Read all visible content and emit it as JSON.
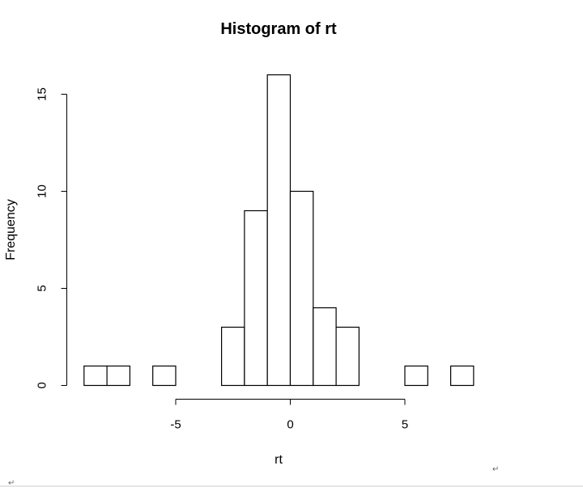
{
  "chart_data": {
    "type": "bar",
    "title": "Histogram of rt",
    "xlabel": "rt",
    "ylabel": "Frequency",
    "bin_width": 1,
    "bin_edges": [
      -9,
      -8,
      -7,
      -6,
      -5,
      -4,
      -3,
      -2,
      -1,
      0,
      1,
      2,
      3,
      4,
      5,
      6,
      7,
      8
    ],
    "categories": [
      "-9 to -8",
      "-8 to -7",
      "-7 to -6",
      "-6 to -5",
      "-5 to -4",
      "-4 to -3",
      "-3 to -2",
      "-2 to -1",
      "-1 to 0",
      "0 to 1",
      "1 to 2",
      "2 to 3",
      "3 to 4",
      "4 to 5",
      "5 to 6",
      "6 to 7",
      "7 to 8"
    ],
    "values": [
      1,
      1,
      0,
      1,
      0,
      0,
      3,
      9,
      16,
      10,
      4,
      3,
      0,
      0,
      1,
      0,
      1
    ],
    "xlim": [
      -5,
      5
    ],
    "ylim": [
      0,
      15
    ],
    "x_ticks": [
      -5,
      0,
      5
    ],
    "x_tick_labels": [
      "-5",
      "0",
      "5"
    ],
    "y_ticks": [
      0,
      5,
      10,
      15
    ],
    "y_tick_labels": [
      "0",
      "5",
      "10",
      "15"
    ],
    "grid": false,
    "legend": "none",
    "colors": {
      "bar_fill": "#ffffff",
      "bar_stroke": "#000000"
    }
  },
  "paragraph_marks": [
    "↵",
    "↵"
  ]
}
